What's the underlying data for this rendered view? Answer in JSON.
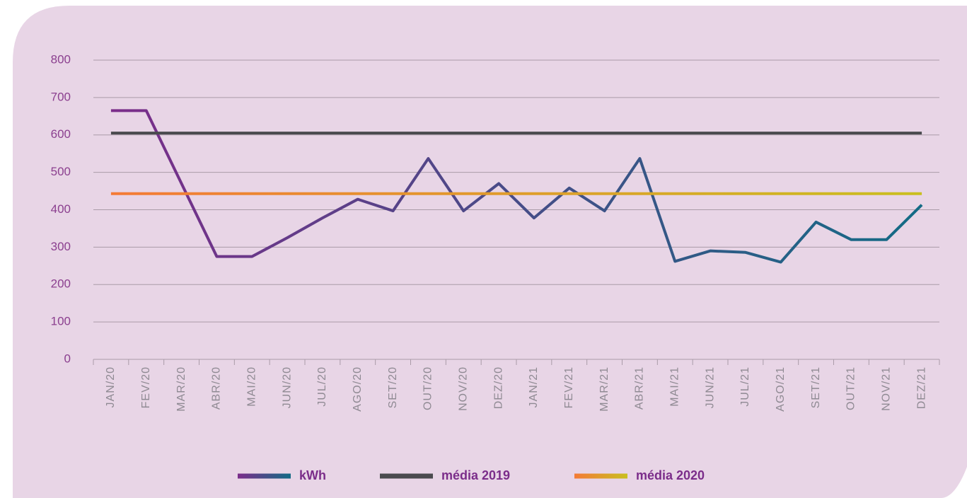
{
  "chart_data": {
    "type": "line",
    "categories": [
      "JAN/20",
      "FEV/20",
      "MAR/20",
      "ABR/20",
      "MAI/20",
      "JUN/20",
      "JUL/20",
      "AGO/20",
      "SET/20",
      "OUT/20",
      "NOV/20",
      "DEZ/20",
      "JAN/21",
      "FEV/21",
      "MAR/21",
      "ABR/21",
      "MAI/21",
      "JUN/21",
      "JUL/21",
      "AGO/21",
      "SET/21",
      "OUT/21",
      "NOV/21",
      "DEZ/21"
    ],
    "series": [
      {
        "name": "kWh",
        "color": [
          "#7b2d8a",
          "#136b85"
        ],
        "values": [
          665,
          665,
          470,
          275,
          275,
          325,
          378,
          428,
          397,
          537,
          397,
          470,
          378,
          458,
          397,
          537,
          262,
          290,
          286,
          260,
          367,
          320,
          320,
          413
        ]
      },
      {
        "name": "média 2019",
        "color": "#4a4a4e",
        "values": [
          605,
          605,
          605,
          605,
          605,
          605,
          605,
          605,
          605,
          605,
          605,
          605,
          605,
          605,
          605,
          605,
          605,
          605,
          605,
          605,
          605,
          605,
          605,
          605
        ]
      },
      {
        "name": "média 2020",
        "color": [
          "#f47a36",
          "#c9bf1f"
        ],
        "values": [
          443,
          443,
          443,
          443,
          443,
          443,
          443,
          443,
          443,
          443,
          443,
          443,
          443,
          443,
          443,
          443,
          443,
          443,
          443,
          443,
          443,
          443,
          443,
          443
        ]
      }
    ],
    "ylim": [
      0,
      800
    ],
    "yticks": [
      0,
      100,
      200,
      300,
      400,
      500,
      600,
      700,
      800
    ],
    "grid": true,
    "legend": "bottom"
  }
}
